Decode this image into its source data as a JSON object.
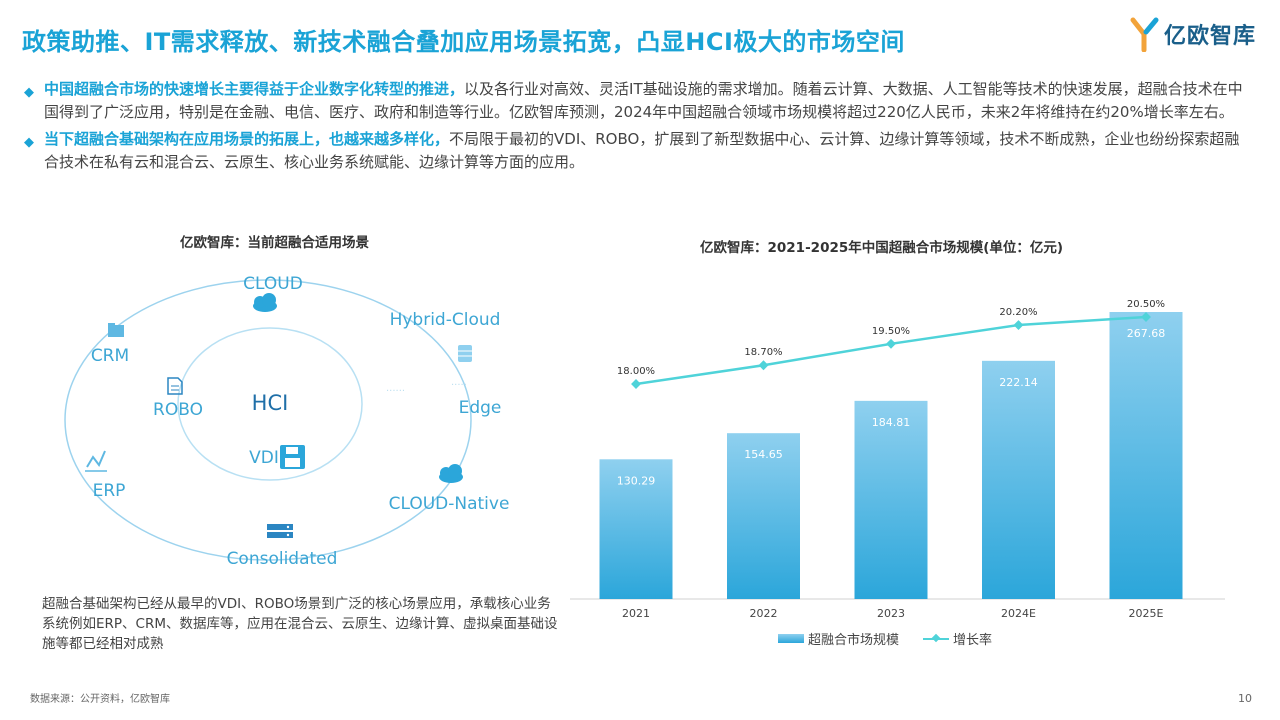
{
  "header": {
    "title": "政策助推、IT需求释放、新技术融合叠加应用场景拓宽，凸显HCI极大的市场空间",
    "logo_text": "亿欧智库"
  },
  "bullets": [
    {
      "highlight": "中国超融合市场的快速增长主要得益于企业数字化转型的推进，",
      "text": "以及各行业对高效、灵活IT基础设施的需求增加。随着云计算、大数据、人工智能等技术的快速发展，超融合技术在中国得到了广泛应用，特别是在金融、电信、医疗、政府和制造等行业。亿欧智库预测，2024年中国超融合领域市场规模将超过220亿人民币，未来2年将维持在约20%增长率左右。"
    },
    {
      "highlight": "当下超融合基础架构在应用场景的拓展上，也越来越多样化，",
      "text": "不局限于最初的VDI、ROBO，扩展到了新型数据中心、云计算、边缘计算等领域，技术不断成熟，企业也纷纷探索超融合技术在私有云和混合云、云原生、核心业务系统赋能、边缘计算等方面的应用。"
    }
  ],
  "diagram": {
    "title": "亿欧智库：当前超融合适用场景",
    "center": "HCI",
    "labels": {
      "cloud": "CLOUD",
      "hybrid": "Hybrid-Cloud",
      "crm": "CRM",
      "robo": "ROBO",
      "edge": "Edge",
      "vdi": "VDI",
      "erp": "ERP",
      "cloud_native": "CLOUD-Native",
      "consolidated": "Consolidated"
    },
    "note": "超融合基础架构已经从最早的VDI、ROBO场景到广泛的核心场景应用，承载核心业务系统例如ERP、CRM、数据库等，应用在混合云、云原生、边缘计算、虚拟桌面基础设施等都已经相对成熟"
  },
  "chart_data": {
    "type": "bar",
    "title": "亿欧智库：2021-2025年中国超融合市场规模(单位：亿元)",
    "categories": [
      "2021",
      "2022",
      "2023",
      "2024E",
      "2025E"
    ],
    "series": [
      {
        "name": "超融合市场规模",
        "type": "bar",
        "values": [
          130.29,
          154.65,
          184.81,
          222.14,
          267.68
        ],
        "labels": [
          "130.29",
          "154.65",
          "184.81",
          "222.14",
          "267.68"
        ]
      },
      {
        "name": "增长率",
        "type": "line",
        "values": [
          18.0,
          18.7,
          19.5,
          20.2,
          20.5
        ],
        "labels": [
          "18.00%",
          "18.70%",
          "19.50%",
          "20.20%",
          "20.50%"
        ]
      }
    ],
    "colors": {
      "bar_top": "#8fd0ef",
      "bar_bottom": "#2ba6da",
      "line": "#4fd3d9"
    }
  },
  "footer": {
    "source": "数据来源：公开资料，亿欧智库",
    "page": "10"
  }
}
